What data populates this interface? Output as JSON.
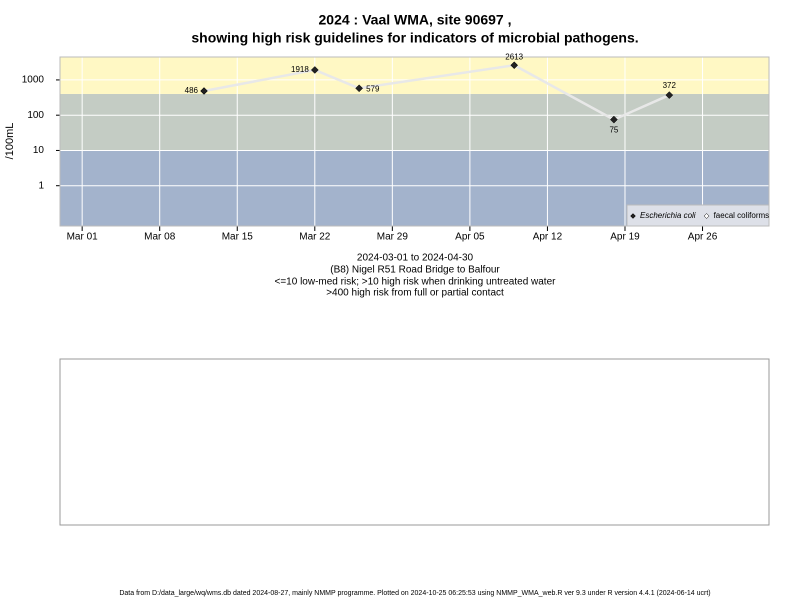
{
  "chart_data": {
    "type": "line",
    "title": "2024 : Vaal WMA, site 90697 ,",
    "subtitle": "showing high risk guidelines for indicators of microbial pathogens.",
    "y_label": "/100mL",
    "notes": [
      "2024-03-01 to 2024-04-30",
      "(B8) Nigel R51 Road Bridge to Balfour",
      "<=10 low-med risk; >10 high risk when drinking untreated water",
      ">400 high risk from full or partial contact"
    ],
    "footer": "Data from D:/data_large/wq/wms.db dated 2024-08-27, mainly NMMP programme. Plotted on 2024-10-25 06:25:53 using NMMP_WMA_web.R ver 9.3 under R version 4.4.1 (2024-06-14 ucrt)",
    "x": [
      "2024-03-12",
      "2024-03-22",
      "2024-03-26",
      "2024-04-09",
      "2024-04-18",
      "2024-04-23"
    ],
    "series": [
      {
        "name": "Escherichia coli",
        "color": "#222222",
        "line_color": "#e8e8e8",
        "values": [
          486,
          1918,
          579,
          2613,
          75,
          372
        ]
      },
      {
        "name": "faecal coliforms",
        "color": "#ffffff",
        "line_color": "#e8e8e8",
        "values": [
          null,
          null,
          null,
          null,
          null,
          null
        ]
      }
    ],
    "xlim": [
      "2024-02-28",
      "2024-05-02"
    ],
    "xticks": [
      {
        "value": "2024-03-01",
        "label": "Mar 01"
      },
      {
        "value": "2024-03-08",
        "label": "Mar 08"
      },
      {
        "value": "2024-03-15",
        "label": "Mar 15"
      },
      {
        "value": "2024-03-22",
        "label": "Mar 22"
      },
      {
        "value": "2024-03-29",
        "label": "Mar 29"
      },
      {
        "value": "2024-04-05",
        "label": "Apr 05"
      },
      {
        "value": "2024-04-12",
        "label": "Apr 12"
      },
      {
        "value": "2024-04-19",
        "label": "Apr 19"
      },
      {
        "value": "2024-04-26",
        "label": "Apr 26"
      }
    ],
    "ylim": [
      0.072,
      4470
    ],
    "yticks": [
      1,
      10,
      100,
      1000
    ],
    "log_y": true,
    "grid": true,
    "grid_color": "#ffffff",
    "legend_position": "bottom-right",
    "bands": [
      {
        "to": 10,
        "color": "#a3b3cc"
      },
      {
        "from": 10,
        "to": 400,
        "color": "#c4ccc4"
      },
      {
        "from": 400,
        "color": "#fff8c4"
      }
    ]
  }
}
